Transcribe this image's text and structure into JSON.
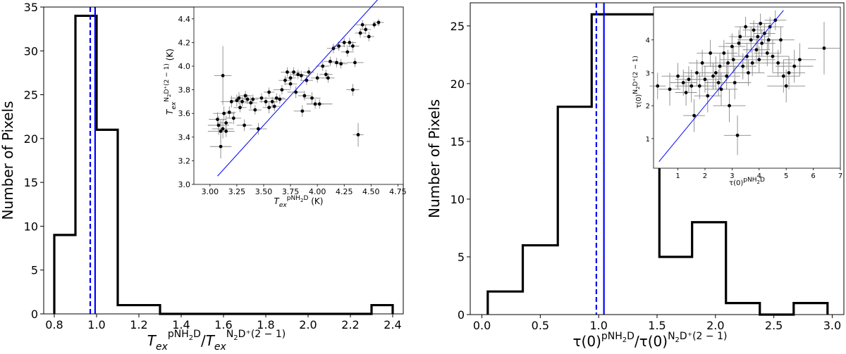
{
  "chart_data": [
    {
      "type": "histogram",
      "ylabel": "Number of Pixels",
      "xlabel": {
        "T": "T",
        "sub": "ex",
        "sup1": "pNH",
        "sup1sub": "2",
        "sup1end": "D",
        "slash": "/",
        "T2": "T",
        "sub2": "ex",
        "sup2": "N",
        "sup2sub": "2",
        "sup2end": "D⁺(2 − 1)"
      },
      "xlim": [
        0.75,
        2.45
      ],
      "ylim": [
        0,
        35
      ],
      "xticks": [
        "0.8",
        "1.0",
        "1.2",
        "1.4",
        "1.6",
        "1.8",
        "2.0",
        "2.2",
        "2.4"
      ],
      "yticks": [
        "0",
        "5",
        "10",
        "15",
        "20",
        "25",
        "30",
        "35"
      ],
      "bin_edges": [
        0.8,
        0.9,
        1.0,
        1.1,
        1.2,
        1.3,
        1.4,
        1.5,
        1.6,
        1.7,
        1.8,
        1.9,
        2.0,
        2.1,
        2.2,
        2.3,
        2.4
      ],
      "counts": [
        9,
        34,
        21,
        1,
        1,
        0,
        0,
        0,
        0,
        0,
        0,
        0,
        0,
        0,
        0,
        1
      ],
      "lines": [
        {
          "x": 0.97,
          "style": "dashed",
          "color": "#0000ff"
        },
        {
          "x": 0.993,
          "style": "solid",
          "color": "#0000ff"
        }
      ],
      "inset": {
        "type": "scatter",
        "xlabel": {
          "T": "T",
          "sub": "ex",
          "sup": "pNH",
          "supsub": "2",
          "supend": "D",
          "unit": " (K)"
        },
        "ylabel": {
          "T": "T",
          "sub": "ex",
          "sup": "N",
          "supsub": "2",
          "supend": "D⁺(2 − 1)",
          "unit": " (K)"
        },
        "xlim": [
          2.85,
          4.8
        ],
        "ylim": [
          3.0,
          4.5
        ],
        "xticks": [
          "3.00",
          "3.25",
          "3.50",
          "3.75",
          "4.00",
          "4.25",
          "4.50",
          "4.75"
        ],
        "yticks": [
          "3.0",
          "3.2",
          "3.4",
          "3.6",
          "3.8",
          "4.0",
          "4.2",
          "4.4"
        ],
        "fit_line": [
          [
            3.07,
            3.07
          ],
          [
            4.6,
            4.6
          ]
        ],
        "line_color": "#0000ff",
        "points": [
          [
            3.07,
            3.55,
            0.08,
            0.06
          ],
          [
            3.08,
            3.5,
            0.1,
            0.08
          ],
          [
            3.1,
            3.45,
            0.12,
            0.1
          ],
          [
            3.1,
            3.32,
            0.1,
            0.1
          ],
          [
            3.12,
            3.92,
            0.08,
            0.25
          ],
          [
            3.12,
            3.47,
            0.1,
            0.08
          ],
          [
            3.13,
            3.6,
            0.1,
            0.06
          ],
          [
            3.15,
            3.52,
            0.06,
            0.06
          ],
          [
            3.15,
            3.45,
            0.08,
            0.05
          ],
          [
            3.18,
            3.61,
            0.06,
            0.05
          ],
          [
            3.2,
            3.7,
            0.1,
            0.05
          ],
          [
            3.22,
            3.56,
            0.07,
            0.05
          ],
          [
            3.25,
            3.71,
            0.06,
            0.05
          ],
          [
            3.27,
            3.73,
            0.08,
            0.05
          ],
          [
            3.28,
            3.65,
            0.06,
            0.04
          ],
          [
            3.3,
            3.7,
            0.05,
            0.04
          ],
          [
            3.32,
            3.5,
            0.07,
            0.05
          ],
          [
            3.33,
            3.75,
            0.06,
            0.04
          ],
          [
            3.35,
            3.72,
            0.05,
            0.04
          ],
          [
            3.38,
            3.69,
            0.06,
            0.05
          ],
          [
            3.4,
            3.72,
            0.05,
            0.04
          ],
          [
            3.42,
            3.63,
            0.06,
            0.04
          ],
          [
            3.45,
            3.47,
            0.08,
            0.05
          ],
          [
            3.48,
            3.73,
            0.06,
            0.04
          ],
          [
            3.52,
            3.7,
            0.06,
            0.04
          ],
          [
            3.55,
            3.65,
            0.06,
            0.05
          ],
          [
            3.55,
            3.78,
            0.05,
            0.04
          ],
          [
            3.58,
            3.7,
            0.05,
            0.04
          ],
          [
            3.6,
            3.66,
            0.05,
            0.04
          ],
          [
            3.62,
            3.73,
            0.08,
            0.04
          ],
          [
            3.65,
            3.72,
            0.06,
            0.04
          ],
          [
            3.67,
            3.8,
            0.08,
            0.04
          ],
          [
            3.7,
            3.88,
            0.06,
            0.04
          ],
          [
            3.72,
            3.95,
            0.06,
            0.04
          ],
          [
            3.75,
            3.9,
            0.05,
            0.04
          ],
          [
            3.75,
            3.85,
            0.06,
            0.04
          ],
          [
            3.78,
            3.95,
            0.06,
            0.04
          ],
          [
            3.8,
            3.78,
            0.08,
            0.05
          ],
          [
            3.82,
            3.93,
            0.06,
            0.04
          ],
          [
            3.85,
            3.92,
            0.06,
            0.04
          ],
          [
            3.86,
            3.62,
            0.08,
            0.05
          ],
          [
            3.88,
            3.75,
            0.06,
            0.04
          ],
          [
            3.9,
            3.88,
            0.06,
            0.04
          ],
          [
            3.92,
            3.95,
            0.05,
            0.04
          ],
          [
            3.95,
            3.73,
            0.08,
            0.05
          ],
          [
            3.98,
            3.68,
            0.08,
            0.04
          ],
          [
            4.0,
            3.9,
            0.06,
            0.04
          ],
          [
            4.02,
            3.68,
            0.12,
            0.04
          ],
          [
            4.05,
            4.0,
            0.06,
            0.04
          ],
          [
            4.08,
            3.93,
            0.06,
            0.04
          ],
          [
            4.1,
            3.9,
            0.06,
            0.04
          ],
          [
            4.12,
            4.04,
            0.06,
            0.04
          ],
          [
            4.15,
            4.15,
            0.06,
            0.04
          ],
          [
            4.18,
            4.03,
            0.08,
            0.04
          ],
          [
            4.2,
            4.17,
            0.06,
            0.04
          ],
          [
            4.22,
            4.02,
            0.06,
            0.04
          ],
          [
            4.25,
            4.2,
            0.06,
            0.04
          ],
          [
            4.28,
            4.12,
            0.06,
            0.04
          ],
          [
            4.3,
            4.2,
            0.06,
            0.04
          ],
          [
            4.33,
            4.17,
            0.06,
            0.04
          ],
          [
            4.33,
            3.8,
            0.06,
            0.05
          ],
          [
            4.35,
            4.03,
            0.08,
            0.04
          ],
          [
            4.38,
            3.42,
            0.05,
            0.1
          ],
          [
            4.4,
            4.28,
            0.05,
            0.04
          ],
          [
            4.42,
            4.35,
            0.06,
            0.04
          ],
          [
            4.45,
            4.31,
            0.05,
            0.04
          ],
          [
            4.48,
            4.25,
            0.05,
            0.04
          ],
          [
            4.53,
            4.35,
            0.05,
            0.03
          ],
          [
            4.57,
            4.37,
            0.05,
            0.03
          ]
        ]
      }
    },
    {
      "type": "histogram",
      "ylabel": "Number of Pixels",
      "xlabel": {
        "T": "τ(0)",
        "sup1": "pNH",
        "sup1sub": "2",
        "sup1end": "D",
        "slash": "/",
        "T2": "τ(0)",
        "sup2": "N",
        "sup2sub": "2",
        "sup2end": "D⁺(2 − 1)"
      },
      "xlim": [
        -0.1,
        3.1
      ],
      "ylim": [
        0,
        27
      ],
      "xticks": [
        "0.0",
        "0.5",
        "1.0",
        "1.5",
        "2.0",
        "2.5",
        "3.0"
      ],
      "yticks": [
        "0",
        "5",
        "10",
        "15",
        "20",
        "25"
      ],
      "bin_edges": [
        0.05,
        0.35,
        0.65,
        0.94,
        1.23,
        1.52,
        1.8,
        2.09,
        2.38,
        2.67,
        2.96
      ],
      "counts": [
        2,
        6,
        18,
        26,
        26,
        5,
        8,
        1,
        0,
        1
      ],
      "lines": [
        {
          "x": 0.98,
          "style": "dashed",
          "color": "#0000ff"
        },
        {
          "x": 1.045,
          "style": "solid",
          "color": "#0000ff"
        }
      ],
      "inset": {
        "type": "scatter",
        "xlabel": {
          "T": "τ(0)",
          "sup": "pNH",
          "supsub": "2",
          "supend": "D"
        },
        "ylabel": {
          "T": "τ(0)",
          "sup": "N",
          "supsub": "2",
          "supend": "D⁺(2 − 1)"
        },
        "xlim": [
          0.1,
          7.0
        ],
        "ylim": [
          0.1,
          5.0
        ],
        "xticks": [
          "1",
          "2",
          "3",
          "4",
          "5",
          "6",
          "7"
        ],
        "yticks": [
          "1",
          "2",
          "3",
          "4"
        ],
        "fit_line": [
          [
            0.3,
            0.3
          ],
          [
            4.9,
            4.9
          ]
        ],
        "line_color": "#0000ff",
        "points": [
          [
            0.25,
            2.6,
            0.3,
            0.4
          ],
          [
            0.7,
            2.5,
            0.4,
            0.5
          ],
          [
            1.0,
            2.9,
            0.6,
            0.4
          ],
          [
            1.2,
            2.7,
            0.5,
            0.4
          ],
          [
            1.3,
            2.4,
            0.4,
            0.4
          ],
          [
            1.4,
            2.8,
            0.5,
            0.4
          ],
          [
            1.5,
            2.6,
            0.6,
            0.5
          ],
          [
            1.6,
            1.7,
            0.4,
            0.5
          ],
          [
            1.7,
            3.0,
            0.5,
            0.4
          ],
          [
            1.8,
            2.6,
            0.6,
            0.4
          ],
          [
            1.9,
            3.3,
            0.5,
            0.4
          ],
          [
            2.0,
            2.8,
            0.6,
            0.4
          ],
          [
            2.1,
            2.3,
            0.5,
            0.5
          ],
          [
            2.2,
            3.6,
            0.5,
            0.4
          ],
          [
            2.3,
            2.9,
            0.6,
            0.4
          ],
          [
            2.4,
            3.0,
            0.5,
            0.5
          ],
          [
            2.5,
            2.7,
            0.5,
            0.4
          ],
          [
            2.55,
            3.2,
            0.6,
            0.4
          ],
          [
            2.6,
            2.5,
            0.6,
            0.5
          ],
          [
            2.7,
            3.6,
            0.5,
            0.4
          ],
          [
            2.8,
            2.9,
            0.5,
            0.4
          ],
          [
            2.85,
            3.3,
            0.5,
            0.4
          ],
          [
            2.9,
            2.0,
            0.6,
            0.5
          ],
          [
            3.0,
            3.8,
            0.5,
            0.4
          ],
          [
            3.05,
            3.4,
            0.5,
            0.4
          ],
          [
            3.1,
            2.7,
            0.6,
            0.5
          ],
          [
            3.2,
            1.1,
            0.5,
            0.6
          ],
          [
            3.25,
            3.9,
            0.5,
            0.4
          ],
          [
            3.3,
            4.1,
            0.4,
            0.3
          ],
          [
            3.4,
            3.2,
            0.5,
            0.4
          ],
          [
            3.5,
            4.4,
            0.4,
            0.3
          ],
          [
            3.55,
            3.5,
            0.5,
            0.4
          ],
          [
            3.6,
            3.0,
            0.6,
            0.4
          ],
          [
            3.7,
            4.0,
            0.5,
            0.4
          ],
          [
            3.75,
            3.3,
            0.5,
            0.4
          ],
          [
            3.8,
            4.3,
            0.4,
            0.3
          ],
          [
            3.9,
            3.7,
            0.5,
            0.4
          ],
          [
            3.95,
            4.1,
            0.4,
            0.4
          ],
          [
            4.0,
            3.4,
            0.6,
            0.4
          ],
          [
            4.05,
            4.5,
            0.4,
            0.3
          ],
          [
            4.1,
            3.9,
            0.5,
            0.4
          ],
          [
            4.2,
            4.2,
            0.4,
            0.3
          ],
          [
            4.3,
            3.6,
            0.5,
            0.4
          ],
          [
            4.35,
            4.0,
            0.4,
            0.3
          ],
          [
            4.4,
            4.4,
            0.5,
            0.3
          ],
          [
            4.5,
            3.5,
            0.6,
            0.5
          ],
          [
            4.6,
            4.6,
            0.4,
            0.3
          ],
          [
            4.7,
            3.3,
            0.5,
            0.4
          ],
          [
            4.8,
            4.0,
            0.5,
            0.4
          ],
          [
            4.9,
            2.9,
            0.6,
            0.5
          ],
          [
            5.0,
            2.6,
            0.7,
            0.5
          ],
          [
            5.1,
            3.0,
            0.6,
            0.5
          ],
          [
            5.3,
            3.2,
            0.7,
            0.5
          ],
          [
            5.5,
            3.4,
            0.6,
            0.5
          ],
          [
            6.4,
            3.75,
            0.6,
            0.8
          ]
        ]
      }
    }
  ]
}
